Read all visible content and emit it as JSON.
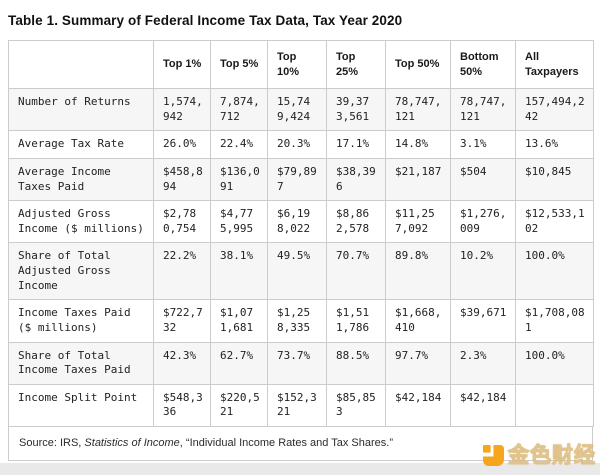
{
  "page": {
    "source": {
      "prefix": "Source: IRS, ",
      "publication": "Statistics of Income",
      "suffix": ", “Individual Income Rates and Tax Shares.”"
    },
    "watermark": {
      "brand": "金色财经"
    }
  },
  "colors": {
    "accent_orange": "#F5A61D",
    "row_alt_background": "#f6f6f6",
    "table_border": "#cccccc"
  },
  "chart_data": {
    "type": "table",
    "title": "Table 1. Summary of Federal Income Tax Data, Tax Year 2020",
    "columns": [
      "",
      "Top 1%",
      "Top 5%",
      "Top 10%",
      "Top 25%",
      "Top 50%",
      "Bottom 50%",
      "All Taxpayers"
    ],
    "rows": [
      {
        "label": "Number of Returns",
        "values": [
          "1,574,942",
          "7,874,712",
          "15,749,424",
          "39,373,561",
          "78,747,121",
          "78,747,121",
          "157,494,242"
        ]
      },
      {
        "label": "Average Tax Rate",
        "values": [
          "26.0%",
          "22.4%",
          "20.3%",
          "17.1%",
          "14.8%",
          "3.1%",
          "13.6%"
        ]
      },
      {
        "label": "Average Income Taxes Paid",
        "values": [
          "$458,894",
          "$136,091",
          "$79,897",
          "$38,396",
          "$21,187",
          "$504",
          "$10,845"
        ]
      },
      {
        "label": "Adjusted Gross Income ($ millions)",
        "values": [
          "$2,780,754",
          "$4,775,995",
          "$6,198,022",
          "$8,862,578",
          "$11,257,092",
          "$1,276,009",
          "$12,533,102"
        ]
      },
      {
        "label": "Share of Total Adjusted Gross Income",
        "values": [
          "22.2%",
          "38.1%",
          "49.5%",
          "70.7%",
          "89.8%",
          "10.2%",
          "100.0%"
        ]
      },
      {
        "label": "Income Taxes Paid ($ millions)",
        "values": [
          "$722,732",
          "$1,071,681",
          "$1,258,335",
          "$1,511,786",
          "$1,668,410",
          "$39,671",
          "$1,708,081"
        ]
      },
      {
        "label": "Share of Total Income Taxes Paid",
        "values": [
          "42.3%",
          "62.7%",
          "73.7%",
          "88.5%",
          "97.7%",
          "2.3%",
          "100.0%"
        ]
      },
      {
        "label": "Income Split Point",
        "values": [
          "$548,336",
          "$220,521",
          "$152,321",
          "$85,853",
          "$42,184",
          "$42,184",
          ""
        ]
      }
    ],
    "source_note": "Source: IRS, Statistics of Income, “Individual Income Rates and Tax Shares.”"
  }
}
